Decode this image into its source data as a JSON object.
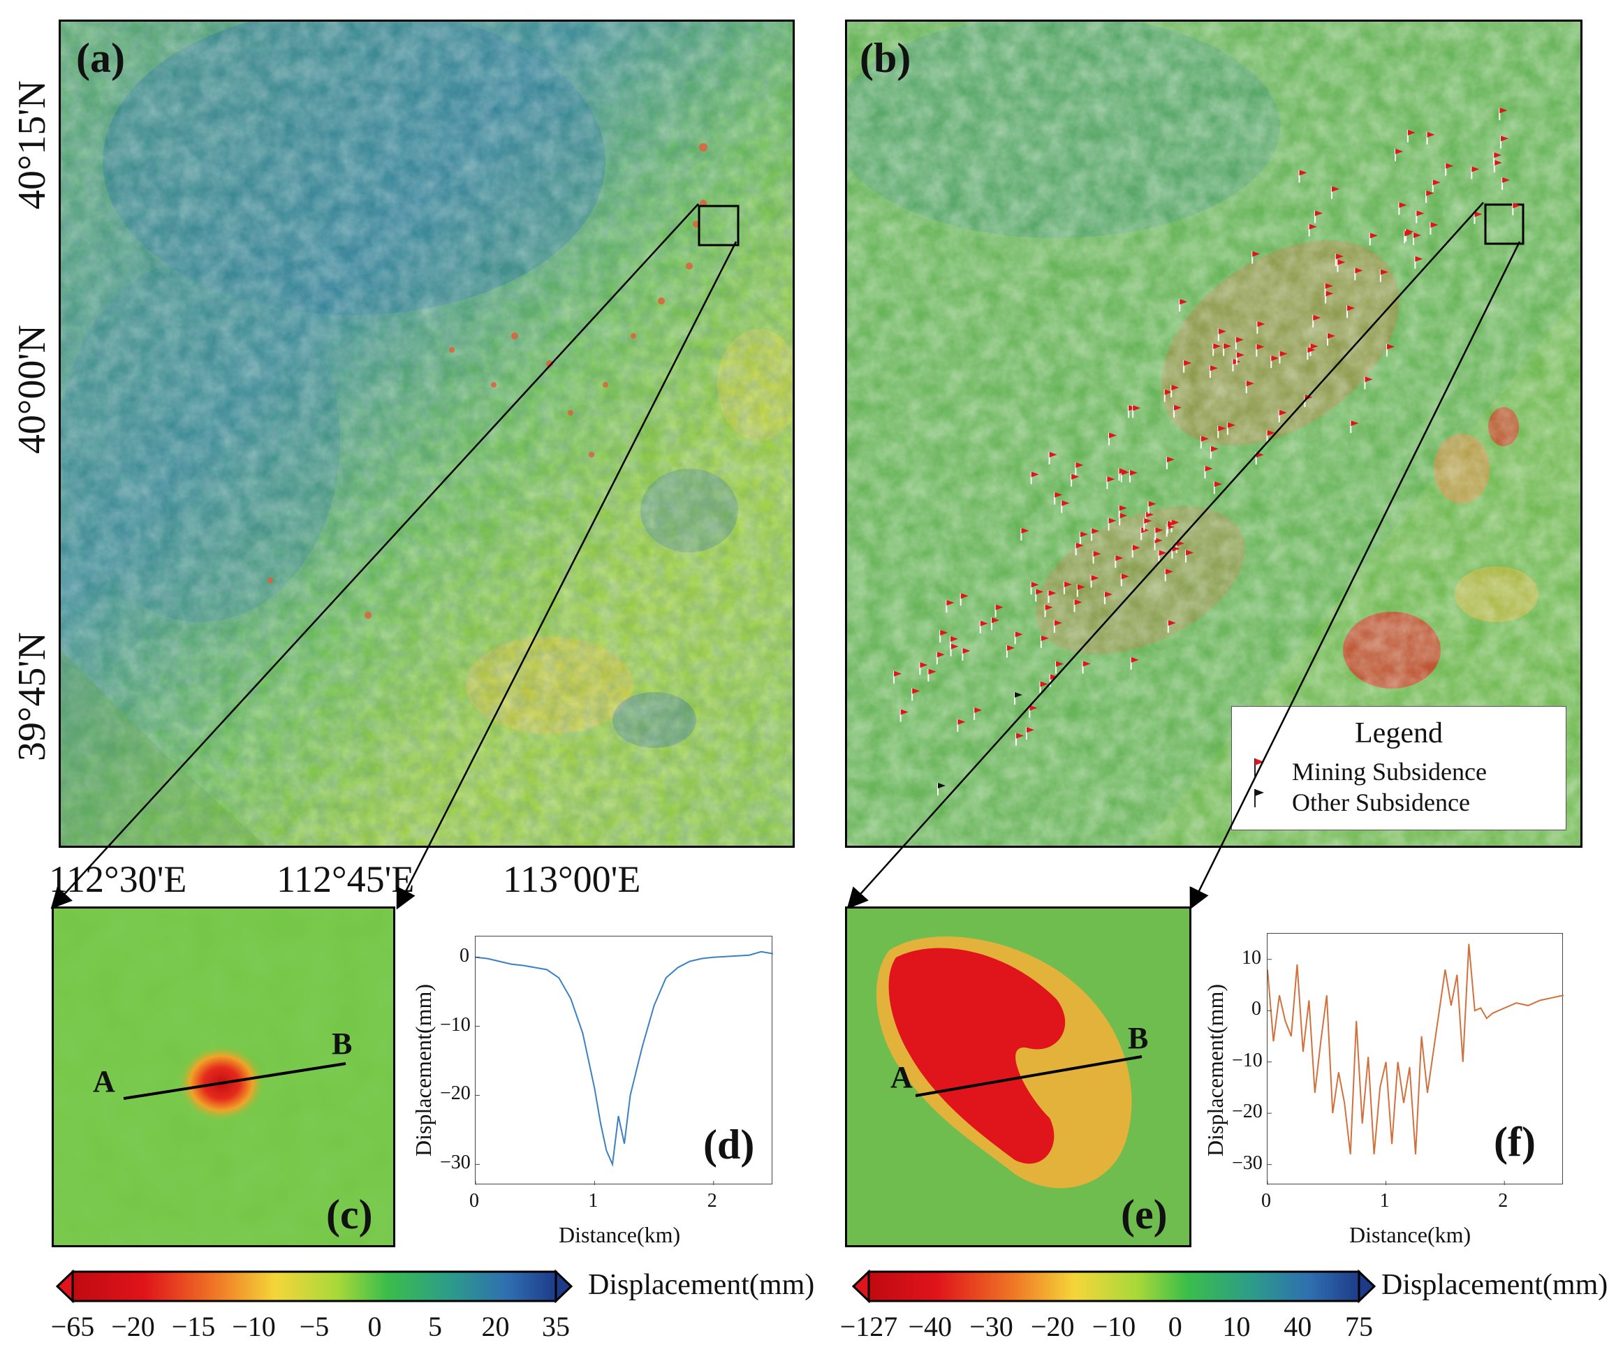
{
  "panels": {
    "a": {
      "label": "(a)"
    },
    "b": {
      "label": "(b)"
    },
    "c": {
      "label": "(c)"
    },
    "d": {
      "label": "(d)"
    },
    "e": {
      "label": "(e)"
    },
    "f": {
      "label": "(f)"
    }
  },
  "lat_labels": [
    "40°15'N",
    "40°00'N",
    "39°45'N"
  ],
  "lon_labels": [
    "112°30'E",
    "112°45'E",
    "113°00'E"
  ],
  "profile_points": {
    "a": "A",
    "b": "B"
  },
  "legend": {
    "title": "Legend",
    "items": [
      {
        "label": "Mining Subsidence",
        "color": "#e0141b"
      },
      {
        "label": "Other Subsidence",
        "color": "#111111"
      }
    ]
  },
  "colorbar_left": {
    "title": "Displacement(mm)",
    "ticks": [
      "−65",
      "−20",
      "−15",
      "−10",
      "−5",
      "0",
      "5",
      "20",
      "35"
    ]
  },
  "colorbar_right": {
    "title": "Displacement(mm)",
    "ticks": [
      "−127",
      "−40",
      "−30",
      "−20",
      "−10",
      "0",
      "10",
      "40",
      "75"
    ]
  },
  "chart_data": [
    {
      "panel": "(d)",
      "type": "line",
      "xlabel": "Distance(km)",
      "ylabel": "Displacement(mm)",
      "xlim": [
        0,
        2.5
      ],
      "ylim": [
        -33,
        3
      ],
      "xticks": [
        "0",
        "1",
        "2"
      ],
      "yticks": [
        "0",
        "−10",
        "−20",
        "−30"
      ],
      "color": "#3b7fc4",
      "x": [
        0,
        0.1,
        0.2,
        0.3,
        0.4,
        0.5,
        0.6,
        0.7,
        0.8,
        0.9,
        1.0,
        1.05,
        1.1,
        1.15,
        1.2,
        1.25,
        1.3,
        1.4,
        1.5,
        1.6,
        1.7,
        1.8,
        1.9,
        2.0,
        2.1,
        2.2,
        2.3,
        2.4,
        2.5
      ],
      "y": [
        0,
        -0.2,
        -0.6,
        -1.0,
        -1.2,
        -1.5,
        -1.8,
        -3,
        -6,
        -11,
        -19,
        -24,
        -28,
        -30,
        -23,
        -27,
        -20,
        -13,
        -7,
        -3,
        -1.5,
        -0.6,
        -0.2,
        0,
        0.1,
        0.2,
        0.3,
        0.8,
        0.5
      ]
    },
    {
      "panel": "(f)",
      "type": "line",
      "xlabel": "Distance(km)",
      "ylabel": "Displacement(mm)",
      "xlim": [
        0,
        2.5
      ],
      "ylim": [
        -34,
        15
      ],
      "xticks": [
        "0",
        "1",
        "2"
      ],
      "yticks": [
        "10",
        "0",
        "−10",
        "−20",
        "−30"
      ],
      "color": "#d2703c",
      "x": [
        0,
        0.05,
        0.1,
        0.15,
        0.2,
        0.25,
        0.3,
        0.35,
        0.4,
        0.45,
        0.5,
        0.55,
        0.6,
        0.65,
        0.7,
        0.75,
        0.8,
        0.85,
        0.9,
        0.95,
        1.0,
        1.05,
        1.1,
        1.15,
        1.2,
        1.25,
        1.3,
        1.35,
        1.5,
        1.55,
        1.6,
        1.65,
        1.7,
        1.75,
        1.8,
        1.85,
        1.9,
        2.0,
        2.1,
        2.2,
        2.3,
        2.4,
        2.5
      ],
      "y": [
        8,
        -6,
        3,
        -2,
        -5,
        9,
        -8,
        2,
        -16,
        -6,
        3,
        -20,
        -12,
        -18,
        -28,
        -2,
        -22,
        -9,
        -28,
        -15,
        -10,
        -26,
        -10,
        -18,
        -11,
        -28,
        -5,
        -16,
        8,
        1,
        7,
        -10,
        13,
        0,
        0.5,
        -1.5,
        -0.5,
        0.5,
        1.5,
        1,
        2,
        2.5,
        3
      ]
    }
  ]
}
